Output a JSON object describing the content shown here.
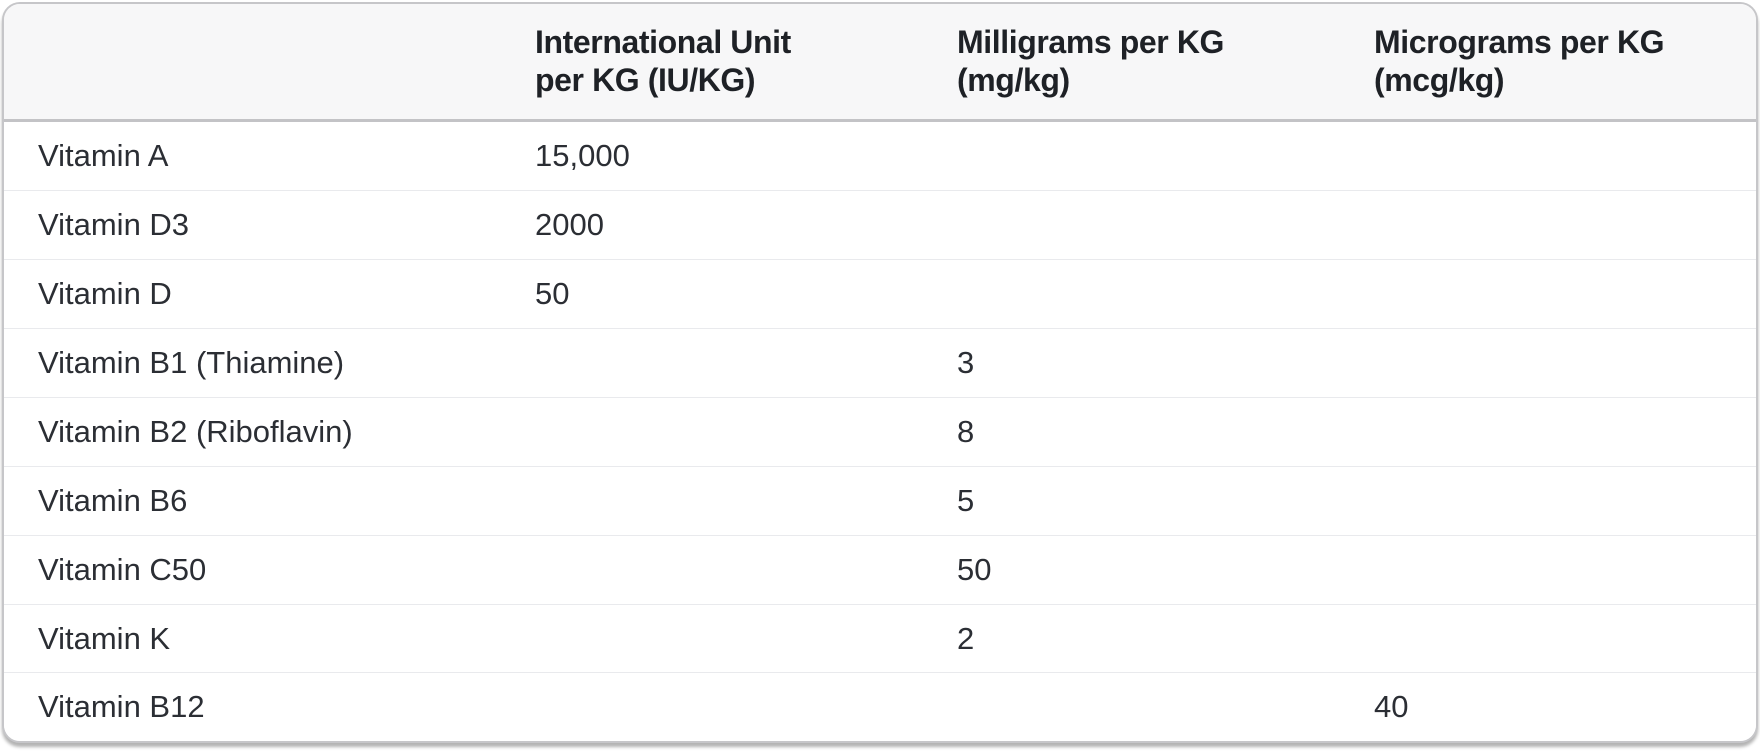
{
  "table": {
    "columns": [
      {
        "key": "name",
        "label": ""
      },
      {
        "key": "iu",
        "label": "International Unit\nper KG (IU/KG)"
      },
      {
        "key": "mg",
        "label": "Milligrams per KG\n(mg/kg)"
      },
      {
        "key": "mcg",
        "label": "Micrograms per KG\n(mcg/kg)"
      }
    ],
    "rows": [
      {
        "name": "Vitamin A",
        "iu": "15,000",
        "mg": "",
        "mcg": ""
      },
      {
        "name": "Vitamin D3",
        "iu": "2000",
        "mg": "",
        "mcg": ""
      },
      {
        "name": "Vitamin D",
        "iu": "50",
        "mg": "",
        "mcg": ""
      },
      {
        "name": "Vitamin B1 (Thiamine)",
        "iu": "",
        "mg": "3",
        "mcg": ""
      },
      {
        "name": "Vitamin B2 (Riboflavin)",
        "iu": "",
        "mg": "8",
        "mcg": ""
      },
      {
        "name": "Vitamin B6",
        "iu": "",
        "mg": "5",
        "mcg": ""
      },
      {
        "name": "Vitamin C50",
        "iu": "",
        "mg": "50",
        "mcg": ""
      },
      {
        "name": "Vitamin K",
        "iu": "",
        "mg": "2",
        "mcg": ""
      },
      {
        "name": "Vitamin B12",
        "iu": "",
        "mg": "",
        "mcg": "40"
      }
    ]
  },
  "colors": {
    "header_bg": "#f7f7f8",
    "header_text": "#1e2126",
    "body_text": "#2b2e34",
    "header_border": "#c3c3c6",
    "row_separator": "#e9eaed",
    "card_border": "#c6c6c9",
    "page_bg": "#ffffff"
  }
}
